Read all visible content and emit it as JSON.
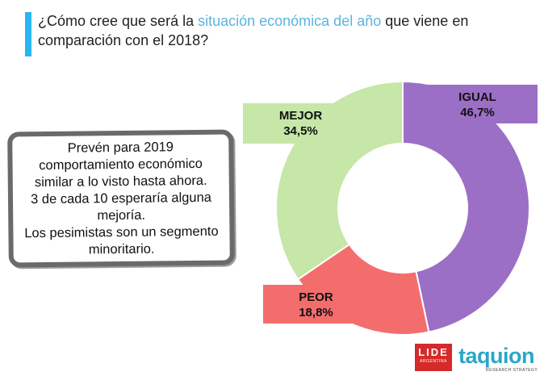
{
  "question": {
    "before": "¿Cómo cree que será la ",
    "highlight": "situación económica del año",
    "after": " que viene en comparación con el 2018?"
  },
  "callout": {
    "lines": [
      "Prevén para 2019 comportamiento económico similar a lo visto hasta ahora.",
      "3 de cada 10 esperaría alguna mejoría.",
      "Los pesimistas son un segmento minoritario."
    ]
  },
  "colors": {
    "accent": "#29b6f0",
    "highlight": "#5cb3df",
    "igual": "#9b6fc6",
    "peor": "#f46d6d",
    "mejor": "#c6e7a7"
  },
  "chart_data": {
    "type": "pie",
    "donut": true,
    "slices": [
      {
        "label": "IGUAL",
        "value": 46.7,
        "display": "46,7%",
        "color": "#9b6fc6"
      },
      {
        "label": "PEOR",
        "value": 18.8,
        "display": "18,8%",
        "color": "#f46d6d"
      },
      {
        "label": "MEJOR",
        "value": 34.5,
        "display": "34,5%",
        "color": "#c6e7a7"
      }
    ]
  },
  "logos": {
    "lide": {
      "name": "LIDE",
      "sub": "ARGENTINA"
    },
    "taquion": {
      "name": "taquion",
      "sub": "RESEARCH STRATEGY"
    }
  }
}
